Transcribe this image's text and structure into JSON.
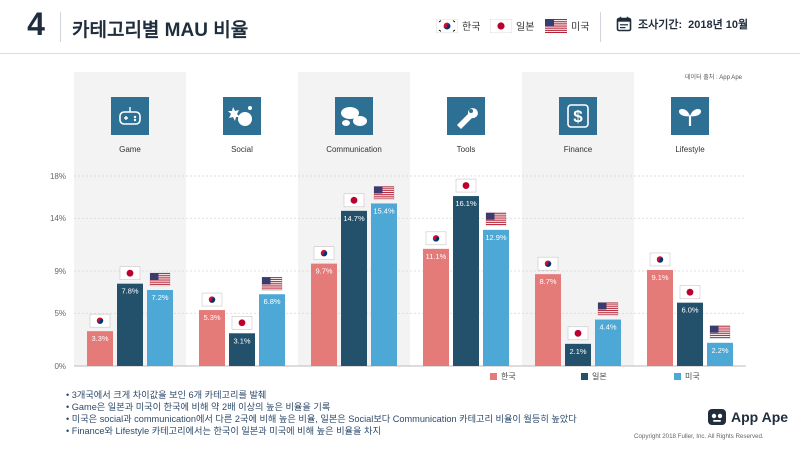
{
  "header": {
    "page_number": "4",
    "title": "카테고리별 MAU 비율",
    "legend": [
      {
        "label": "한국",
        "flag": "korea-flag"
      },
      {
        "label": "일본",
        "flag": "japan-flag"
      },
      {
        "label": "미국",
        "flag": "usa-flag"
      }
    ],
    "period_label": "조사기간:",
    "period_value": "2018년 10월"
  },
  "source_note": "데이터 출처 : App Ape",
  "chart_data": {
    "type": "bar",
    "categories": [
      "Game",
      "Social",
      "Communication",
      "Tools",
      "Finance",
      "Lifestyle"
    ],
    "category_icons": [
      "game-controller-icon",
      "social-badge-icon",
      "chat-bubbles-icon",
      "wrench-icon",
      "dollar-icon",
      "sprout-icon"
    ],
    "series": [
      {
        "name": "한국",
        "color": "#e47b79",
        "values": [
          3.3,
          5.3,
          9.7,
          11.1,
          8.7,
          9.1
        ],
        "labels": [
          "3.3%",
          "5.3%",
          "9.7%",
          "11.1%",
          "8.7%",
          "9.1%"
        ]
      },
      {
        "name": "일본",
        "color": "#23506b",
        "values": [
          7.8,
          3.1,
          14.7,
          16.1,
          2.1,
          6.0
        ],
        "labels": [
          "7.8%",
          "3.1%",
          "14.7%",
          "16.1%",
          "2.1%",
          "6.0%"
        ]
      },
      {
        "name": "미국",
        "color": "#4ea8d6",
        "values": [
          7.2,
          6.8,
          15.4,
          12.9,
          4.4,
          2.2
        ],
        "labels": [
          "7.2%",
          "6.8%",
          "15.4%",
          "12.9%",
          "4.4%",
          "2.2%"
        ]
      }
    ],
    "y_ticks": [
      0,
      5,
      9,
      14,
      18
    ],
    "y_tick_labels": [
      "0%",
      "5%",
      "9%",
      "14%",
      "18%"
    ],
    "ylim": [
      0,
      18
    ],
    "grid": true,
    "legend_position": "bottom-right",
    "colors": {
      "korea": "#e47b79",
      "japan": "#23506b",
      "usa": "#4ea8d6",
      "icon_bg": "#2e6f94",
      "panel": "#f3f3f3"
    }
  },
  "footer": {
    "notes": [
      "3개국에서 크게 차이값을 보인 6개 카테고리를 발췌",
      "Game은 일본과 미국이 한국에 비해 약 2배 이상의 높은 비율을 기록",
      "미국은 social과 communication에서 다른 2국에 비해 높은 비율, 일본은 Social보다 Communication 카테고리 비율이 월등히 높았다",
      "Finance와 Lifestyle 카테고리에서는 한국이 일본과 미국에 비해 높은 비율을 차지"
    ],
    "brand": "App Ape",
    "copyright": "Copyright 2018 Fuller, Inc. All Rights Reserved."
  }
}
